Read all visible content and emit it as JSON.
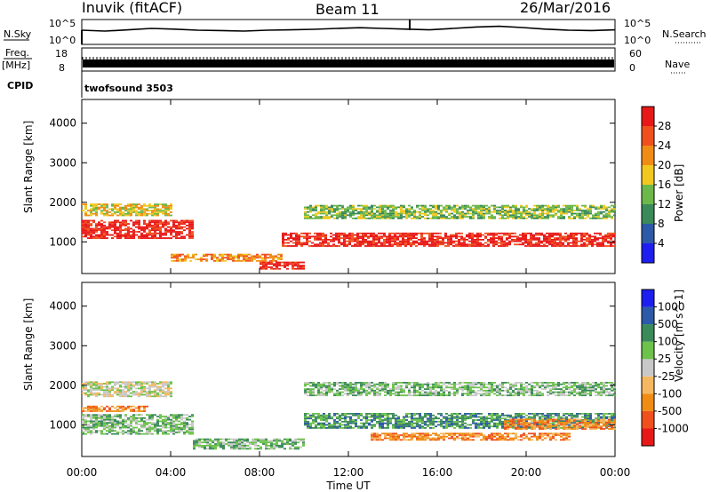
{
  "header": {
    "station": "Inuvik (fitACF)",
    "beam": "Beam 11",
    "date": "26/Mar/2016"
  },
  "top_panels": {
    "nsky_label": "N.Sky",
    "nsky_ticks": [
      "10^5",
      "10^0"
    ],
    "nsearch_label": "N.Search",
    "nsearch_ticks": [
      "10^5",
      "10^0"
    ],
    "freq_label_top": "Freq.",
    "freq_label_bottom": "[MHz]",
    "freq_ticks": [
      "18",
      "8"
    ],
    "nave_label": "Nave",
    "nave_ticks": [
      "60",
      "0"
    ],
    "cpid_label": "CPID",
    "cpid_value": "twofsound 3503"
  },
  "chart_data": [
    {
      "type": "heatmap",
      "name": "power",
      "xlabel": "",
      "ylabel": "Slant Range [km]",
      "yticks": [
        "1000",
        "2000",
        "3000",
        "4000"
      ],
      "ylim": [
        200,
        4600
      ],
      "colorbar_label": "Power [dB]",
      "colorbar_ticks": [
        "4",
        "8",
        "12",
        "16",
        "20",
        "24",
        "28"
      ],
      "colors": [
        "#1e1ef0",
        "#2d5aa8",
        "#3b8a5a",
        "#6cb84a",
        "#f0c820",
        "#f08c14",
        "#f0501e",
        "#e81818"
      ],
      "echo_bands": [
        {
          "x_start": 0,
          "x_end": 5,
          "range_center": 1300,
          "width": 450,
          "level": 7
        },
        {
          "x_start": 0,
          "x_end": 4,
          "range_center": 1800,
          "width": 300,
          "level": 4
        },
        {
          "x_start": 4,
          "x_end": 9,
          "range_center": 600,
          "width": 200,
          "level": 5
        },
        {
          "x_start": 8,
          "x_end": 10,
          "range_center": 400,
          "width": 200,
          "level": 7
        },
        {
          "x_start": 9,
          "x_end": 24,
          "range_center": 1050,
          "width": 350,
          "level": 7
        },
        {
          "x_start": 10,
          "x_end": 24,
          "range_center": 1750,
          "width": 350,
          "level": 3
        }
      ]
    },
    {
      "type": "heatmap",
      "name": "velocity",
      "xlabel": "Time UT",
      "ylabel": "Slant Range [km]",
      "xticks": [
        "00:00",
        "04:00",
        "08:00",
        "12:00",
        "16:00",
        "20:00",
        "00:00"
      ],
      "yticks": [
        "1000",
        "2000",
        "3000",
        "4000"
      ],
      "ylim": [
        200,
        4600
      ],
      "colorbar_label": "Velocity [m s^-1]",
      "colorbar_ticks": [
        "-1000",
        "-500",
        "-100",
        "-25",
        "25",
        "100",
        "500",
        "1000"
      ],
      "colors": [
        "#e81818",
        "#f0501e",
        "#f08c14",
        "#f5b860",
        "#c8c8c8",
        "#6cc24a",
        "#3b8a5a",
        "#2d5aa8",
        "#1e1ef0"
      ],
      "echo_bands": [
        {
          "x_start": 0,
          "x_end": 4,
          "range_center": 1900,
          "width": 400,
          "level": 4
        },
        {
          "x_start": 0,
          "x_end": 5,
          "range_center": 1000,
          "width": 500,
          "level": 5
        },
        {
          "x_start": 0,
          "x_end": 3,
          "range_center": 1400,
          "width": 150,
          "level": 2
        },
        {
          "x_start": 5,
          "x_end": 10,
          "range_center": 500,
          "width": 250,
          "level": 5
        },
        {
          "x_start": 10,
          "x_end": 24,
          "range_center": 1100,
          "width": 400,
          "level": 6
        },
        {
          "x_start": 10,
          "x_end": 24,
          "range_center": 1900,
          "width": 350,
          "level": 5
        },
        {
          "x_start": 13,
          "x_end": 22,
          "range_center": 700,
          "width": 200,
          "level": 2
        },
        {
          "x_start": 19,
          "x_end": 24,
          "range_center": 1000,
          "width": 250,
          "level": 2
        }
      ]
    }
  ],
  "nsky_series": [
    0.6,
    0.55,
    0.62,
    0.7,
    0.66,
    0.6,
    0.58,
    0.55,
    0.6,
    0.62,
    0.65,
    0.7,
    0.74,
    0.7,
    0.66,
    0.62,
    0.7,
    0.78,
    0.82,
    0.75,
    0.66,
    0.6,
    0.58,
    0.62
  ]
}
